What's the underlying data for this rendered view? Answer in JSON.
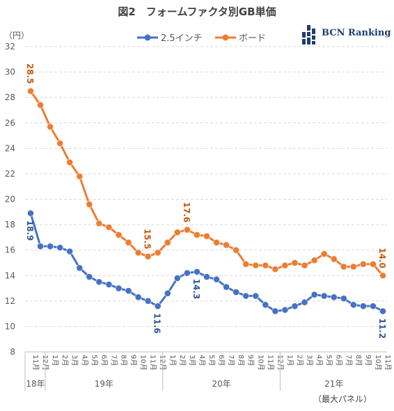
{
  "page": {
    "title": "図2　フォームファクタ別GB単価",
    "unit": "（円）",
    "footnote": "（最大パネル）",
    "logo_text": "BCN Ranking"
  },
  "chart_data": {
    "type": "line",
    "title": "図2　フォームファクタ別GB単価",
    "ylabel": "（円）",
    "ylim": [
      8,
      32
    ],
    "yticks": [
      8,
      10,
      12,
      14,
      16,
      18,
      20,
      22,
      24,
      26,
      28,
      30,
      32
    ],
    "grid": "horizontal dashed",
    "legend_position": "top",
    "x": [
      "11月",
      "12月",
      "1月",
      "2月",
      "3月",
      "4月",
      "5月",
      "6月",
      "7月",
      "8月",
      "9月",
      "10月",
      "11月",
      "12月",
      "1月",
      "2月",
      "3月",
      "4月",
      "5月",
      "6月",
      "7月",
      "8月",
      "9月",
      "10月",
      "11月",
      "12月",
      "1月",
      "2月",
      "3月",
      "4月",
      "5月",
      "6月",
      "7月",
      "8月",
      "9月",
      "10月",
      "11月"
    ],
    "year_groups": [
      {
        "label": "18年",
        "count": 2
      },
      {
        "label": "19年",
        "count": 12
      },
      {
        "label": "20年",
        "count": 12
      },
      {
        "label": "21年",
        "count": 11
      }
    ],
    "series": [
      {
        "name": "2.5インチ",
        "color": "#4472c4",
        "label_color": "#2f5597",
        "values": [
          18.9,
          16.3,
          16.3,
          16.2,
          15.9,
          14.6,
          13.9,
          13.5,
          13.3,
          13.0,
          12.8,
          12.3,
          12.0,
          11.6,
          12.6,
          13.8,
          14.2,
          14.3,
          13.9,
          13.7,
          13.1,
          12.7,
          12.4,
          12.4,
          11.7,
          11.2,
          11.3,
          11.6,
          11.9,
          12.5,
          12.4,
          12.3,
          12.2,
          11.7,
          11.6,
          11.6,
          11.2
        ],
        "annotations": [
          {
            "index": 0,
            "text": "18.9",
            "placement": "below"
          },
          {
            "index": 13,
            "text": "11.6",
            "placement": "below"
          },
          {
            "index": 17,
            "text": "14.3",
            "placement": "below"
          },
          {
            "index": 36,
            "text": "11.2",
            "placement": "below"
          }
        ]
      },
      {
        "name": "ボード",
        "color": "#ed7d31",
        "label_color": "#c55a11",
        "values": [
          28.5,
          27.4,
          25.7,
          24.4,
          22.9,
          21.8,
          19.6,
          18.1,
          17.8,
          17.2,
          16.6,
          15.8,
          15.5,
          15.8,
          16.6,
          17.4,
          17.6,
          17.2,
          17.1,
          16.6,
          16.4,
          16.0,
          14.9,
          14.8,
          14.8,
          14.5,
          14.8,
          15.0,
          14.8,
          15.2,
          15.7,
          15.3,
          14.7,
          14.7,
          14.9,
          14.9,
          14.0
        ],
        "annotations": [
          {
            "index": 0,
            "text": "28.5",
            "placement": "above"
          },
          {
            "index": 12,
            "text": "15.5",
            "placement": "above"
          },
          {
            "index": 16,
            "text": "17.6",
            "placement": "above"
          },
          {
            "index": 36,
            "text": "14.0",
            "placement": "above"
          }
        ]
      }
    ]
  }
}
